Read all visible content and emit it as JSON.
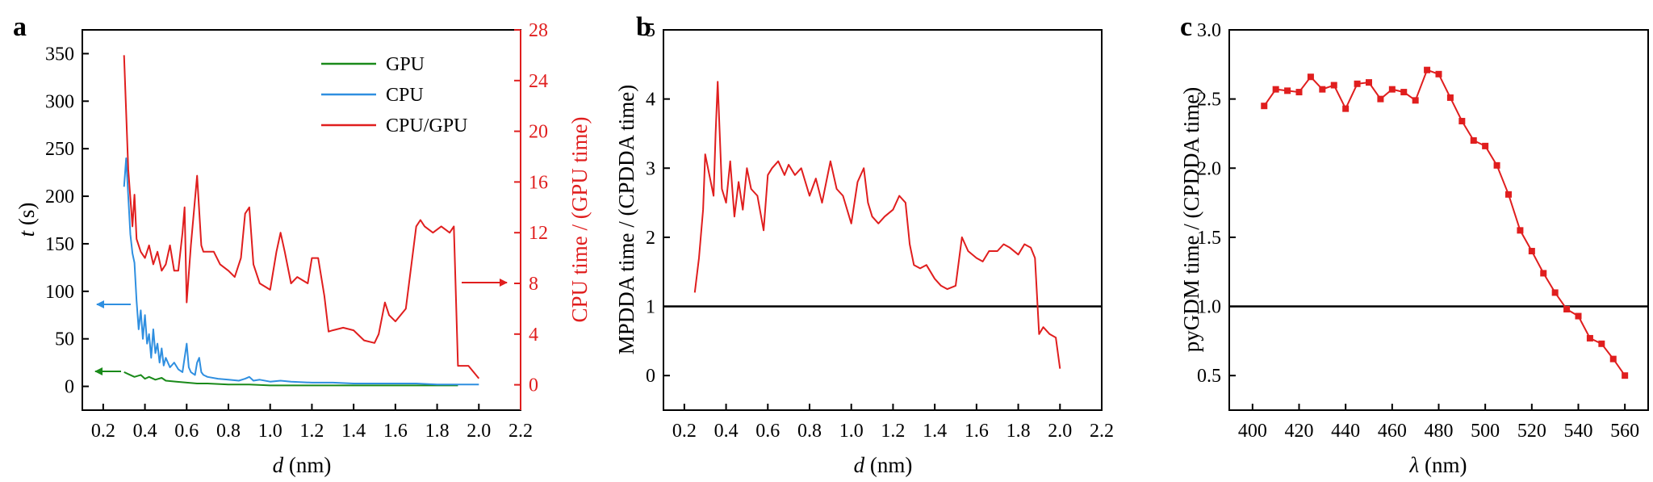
{
  "panels": [
    "a",
    "b",
    "c"
  ],
  "colors": {
    "gpu": "#1a8a1a",
    "cpu": "#2f8fe0",
    "ratio": "#e01e1e",
    "axis": "#000000"
  },
  "chart_data": [
    {
      "type": "line",
      "panel": "a",
      "xlabel_var": "d",
      "xlabel_unit": " (nm)",
      "ylabel_var": "t",
      "ylabel_unit": " (s)",
      "y2label": "CPU time / (GPU time)",
      "xlim": [
        0.1,
        2.2
      ],
      "ylim": [
        -25,
        375
      ],
      "y2lim": [
        -2,
        28
      ],
      "xticks": [
        "0.2",
        "0.4",
        "0.6",
        "0.8",
        "1.0",
        "1.2",
        "1.4",
        "1.6",
        "1.8",
        "2.0",
        "2.2"
      ],
      "yticks": [
        "0",
        "50",
        "100",
        "150",
        "200",
        "250",
        "300",
        "350"
      ],
      "y2ticks": [
        "0",
        "4",
        "8",
        "12",
        "16",
        "20",
        "24",
        "28"
      ],
      "legend": {
        "position": "top-right",
        "entries": [
          "GPU",
          "CPU",
          "CPU/GPU"
        ]
      },
      "series": [
        {
          "name": "GPU",
          "axis": "left",
          "x": [
            0.3,
            0.32,
            0.35,
            0.38,
            0.4,
            0.42,
            0.45,
            0.48,
            0.5,
            0.55,
            0.6,
            0.65,
            0.7,
            0.8,
            0.9,
            1.0,
            1.2,
            1.4,
            1.6,
            1.8,
            1.9
          ],
          "y": [
            15,
            13,
            10,
            12,
            8,
            10,
            7,
            9,
            6,
            5,
            4,
            3,
            3,
            2,
            2,
            1,
            1,
            1,
            1,
            1,
            1
          ]
        },
        {
          "name": "CPU",
          "axis": "left",
          "x": [
            0.3,
            0.31,
            0.32,
            0.33,
            0.34,
            0.35,
            0.36,
            0.37,
            0.38,
            0.39,
            0.4,
            0.41,
            0.42,
            0.43,
            0.44,
            0.45,
            0.46,
            0.47,
            0.48,
            0.49,
            0.5,
            0.52,
            0.54,
            0.56,
            0.58,
            0.59,
            0.6,
            0.61,
            0.62,
            0.64,
            0.65,
            0.66,
            0.67,
            0.68,
            0.7,
            0.75,
            0.8,
            0.85,
            0.88,
            0.9,
            0.92,
            0.95,
            1.0,
            1.05,
            1.1,
            1.2,
            1.3,
            1.4,
            1.5,
            1.6,
            1.7,
            1.8,
            1.9,
            2.0
          ],
          "y": [
            210,
            240,
            200,
            160,
            140,
            130,
            90,
            60,
            80,
            50,
            75,
            45,
            55,
            30,
            60,
            35,
            45,
            25,
            40,
            22,
            30,
            20,
            25,
            18,
            15,
            30,
            45,
            20,
            15,
            12,
            25,
            30,
            15,
            12,
            10,
            8,
            7,
            6,
            8,
            10,
            6,
            7,
            5,
            6,
            5,
            4,
            4,
            3,
            3,
            3,
            3,
            2,
            2,
            2
          ]
        },
        {
          "name": "CPU/GPU",
          "axis": "right",
          "x": [
            0.3,
            0.32,
            0.34,
            0.35,
            0.36,
            0.38,
            0.4,
            0.42,
            0.44,
            0.46,
            0.48,
            0.5,
            0.52,
            0.54,
            0.56,
            0.58,
            0.59,
            0.6,
            0.62,
            0.65,
            0.67,
            0.68,
            0.7,
            0.73,
            0.76,
            0.8,
            0.83,
            0.86,
            0.88,
            0.9,
            0.92,
            0.95,
            1.0,
            1.03,
            1.05,
            1.07,
            1.1,
            1.13,
            1.18,
            1.2,
            1.23,
            1.26,
            1.28,
            1.3,
            1.35,
            1.4,
            1.45,
            1.5,
            1.52,
            1.55,
            1.57,
            1.6,
            1.65,
            1.7,
            1.72,
            1.74,
            1.78,
            1.82,
            1.86,
            1.88,
            1.9,
            1.95,
            2.0
          ],
          "y": [
            26,
            17,
            12.5,
            15,
            11.5,
            10.5,
            10,
            11,
            9.5,
            10.5,
            9,
            9.5,
            11,
            9,
            9,
            12,
            14,
            6.5,
            11,
            16.5,
            11,
            10.5,
            10.5,
            10.5,
            9.5,
            9,
            8.5,
            10,
            13.5,
            14,
            9.5,
            8,
            7.5,
            10.5,
            12,
            10.5,
            8,
            8.5,
            8,
            10,
            10,
            7,
            4.2,
            4.3,
            4.5,
            4.3,
            3.5,
            3.3,
            4,
            6.5,
            5.5,
            5,
            6,
            12.5,
            13,
            12.5,
            12,
            12.5,
            12,
            12.5,
            1.5,
            1.5,
            0.5
          ]
        }
      ],
      "annotations": [
        "left-arrow-cpu",
        "left-arrow-gpu",
        "right-arrow-ratio"
      ]
    },
    {
      "type": "line",
      "panel": "b",
      "xlabel_var": "d",
      "xlabel_unit": " (nm)",
      "ylabel": "MPDDA time / (CPDDA time)",
      "xlim": [
        0.1,
        2.2
      ],
      "ylim": [
        -0.5,
        5
      ],
      "xticks": [
        "0.2",
        "0.4",
        "0.6",
        "0.8",
        "1.0",
        "1.2",
        "1.4",
        "1.6",
        "1.8",
        "2.0",
        "2.2"
      ],
      "yticks": [
        "0",
        "1",
        "2",
        "3",
        "4",
        "5"
      ],
      "reference_line": 1,
      "series": [
        {
          "name": "",
          "color": "ratio",
          "x": [
            0.25,
            0.27,
            0.29,
            0.3,
            0.32,
            0.34,
            0.35,
            0.36,
            0.38,
            0.4,
            0.42,
            0.44,
            0.46,
            0.48,
            0.5,
            0.52,
            0.55,
            0.58,
            0.6,
            0.62,
            0.65,
            0.68,
            0.7,
            0.73,
            0.76,
            0.8,
            0.83,
            0.86,
            0.9,
            0.93,
            0.96,
            1.0,
            1.03,
            1.06,
            1.08,
            1.1,
            1.13,
            1.16,
            1.2,
            1.23,
            1.26,
            1.28,
            1.3,
            1.33,
            1.36,
            1.4,
            1.43,
            1.46,
            1.5,
            1.53,
            1.56,
            1.6,
            1.63,
            1.66,
            1.7,
            1.73,
            1.76,
            1.8,
            1.83,
            1.86,
            1.88,
            1.9,
            1.92,
            1.95,
            1.98,
            2.0
          ],
          "y": [
            1.2,
            1.7,
            2.4,
            3.2,
            2.9,
            2.6,
            3.5,
            4.25,
            2.7,
            2.5,
            3.1,
            2.3,
            2.8,
            2.4,
            3.0,
            2.7,
            2.6,
            2.1,
            2.9,
            3.0,
            3.1,
            2.9,
            3.05,
            2.9,
            3.0,
            2.6,
            2.85,
            2.5,
            3.1,
            2.7,
            2.6,
            2.2,
            2.8,
            3.0,
            2.5,
            2.3,
            2.2,
            2.3,
            2.4,
            2.6,
            2.5,
            1.9,
            1.6,
            1.55,
            1.6,
            1.4,
            1.3,
            1.25,
            1.3,
            2.0,
            1.8,
            1.7,
            1.65,
            1.8,
            1.8,
            1.9,
            1.85,
            1.75,
            1.9,
            1.85,
            1.7,
            0.6,
            0.7,
            0.6,
            0.55,
            0.1
          ]
        }
      ]
    },
    {
      "type": "line",
      "panel": "c",
      "xlabel_var": "λ",
      "xlabel_unit": " (nm)",
      "ylabel": "pyGDM time / (CPDDA time)",
      "xlim": [
        390,
        570
      ],
      "ylim": [
        0.25,
        3.0
      ],
      "xticks": [
        "400",
        "420",
        "440",
        "460",
        "480",
        "500",
        "520",
        "540",
        "560"
      ],
      "yticks": [
        "0.5",
        "1.0",
        "1.5",
        "2.0",
        "2.5",
        "3.0"
      ],
      "reference_line": 1,
      "markers": "square",
      "series": [
        {
          "name": "",
          "color": "ratio",
          "x": [
            405,
            410,
            415,
            420,
            425,
            430,
            435,
            440,
            445,
            450,
            455,
            460,
            465,
            470,
            475,
            480,
            485,
            490,
            495,
            500,
            505,
            510,
            515,
            520,
            525,
            530,
            535,
            540,
            545,
            550,
            555,
            560
          ],
          "y": [
            2.45,
            2.57,
            2.56,
            2.55,
            2.66,
            2.57,
            2.6,
            2.43,
            2.61,
            2.62,
            2.5,
            2.57,
            2.55,
            2.49,
            2.71,
            2.68,
            2.51,
            2.34,
            2.2,
            2.16,
            2.02,
            1.81,
            1.55,
            1.4,
            1.24,
            1.1,
            0.98,
            0.93,
            0.77,
            0.73,
            0.62,
            0.5
          ]
        }
      ]
    }
  ]
}
